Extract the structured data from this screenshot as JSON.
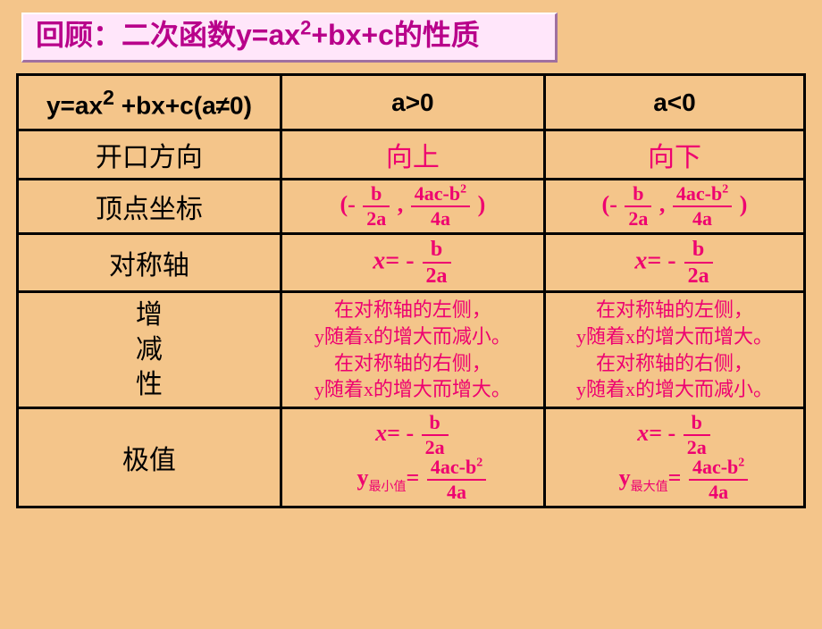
{
  "colors": {
    "page_bg": "#f4c58a",
    "title_bg": "#ffe6fa",
    "title_text": "#b8008a",
    "accent_text": "#ee0070",
    "border": "#000000"
  },
  "title": {
    "prefix": "回顾：二次函数y=ax",
    "sup": "2",
    "suffix": "+bx+c的性质"
  },
  "table": {
    "header": {
      "c0_prefix": "y=ax",
      "c0_sup": "2",
      "c0_suffix": " +bx+c(a≠0)",
      "c1": "a>0",
      "c2": "a<0"
    },
    "rows": {
      "direction": {
        "label": "开口方向",
        "a_pos": "向上",
        "a_neg": "向下"
      },
      "vertex": {
        "label": "顶点坐标",
        "open": "(-",
        "frac1_num": "b",
        "frac1_den": "2a",
        "comma": ",",
        "frac2_num_pre": "4ac-b",
        "frac2_num_sup": "2",
        "frac2_den": "4a",
        "close": ")"
      },
      "axis": {
        "label": "对称轴",
        "prefix_x": "x",
        "prefix_eq": "= -",
        "frac_num": "b",
        "frac_den": "2a"
      },
      "monotonic": {
        "label_l1": "增",
        "label_l2": "减",
        "label_l3": "性",
        "a_pos": "在对称轴的左侧，\ny随着x的增大而减小。\n在对称轴的右侧，\ny随着x的增大而增大。",
        "a_neg": "在对称轴的左侧，\ny随着x的增大而增大。\n在对称轴的右侧，\ny随着x的增大而减小。"
      },
      "extreme": {
        "label": "极值",
        "x_var": "x",
        "x_eq": "= -",
        "x_frac_num": "b",
        "x_frac_den": "2a",
        "y_var": "y",
        "y_sub_pos": "最小值",
        "y_sub_neg": "最大值",
        "y_eq": "=",
        "y_frac_num_pre": "4ac-b",
        "y_frac_num_sup": "2",
        "y_frac_den": "4a"
      }
    }
  }
}
